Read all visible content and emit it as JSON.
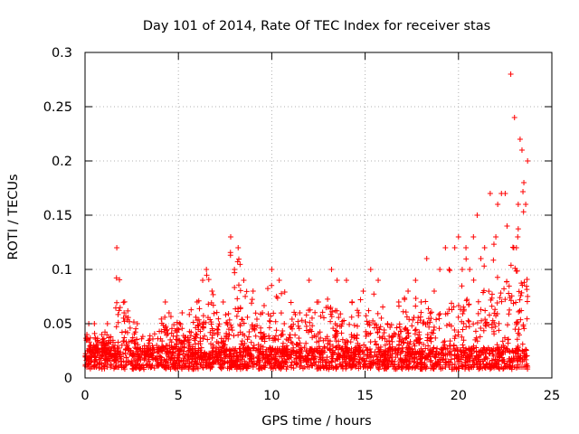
{
  "chart_data": {
    "type": "scatter",
    "title": "Day 101 of 2014, Rate Of TEC Index for receiver stas",
    "xlabel": "GPS time / hours",
    "ylabel": "ROTI / TECUs",
    "xlim": [
      0,
      25
    ],
    "ylim": [
      0,
      0.3
    ],
    "xticks": [
      0,
      5,
      10,
      15,
      20,
      25
    ],
    "xtick_labels": [
      "0",
      "5",
      "10",
      "15",
      "20",
      "25"
    ],
    "yticks": [
      0,
      0.05,
      0.1,
      0.15,
      0.2,
      0.25,
      0.3
    ],
    "ytick_labels": [
      "0",
      "0.05",
      "0.1",
      "0.15",
      "0.2",
      "0.25",
      "0.3"
    ],
    "grid": true,
    "marker": "+",
    "color": "#ff0000",
    "series": [
      {
        "name": "ROTI",
        "x": [
          0.1,
          0.2,
          0.3,
          0.5,
          0.6,
          0.9,
          1.2,
          1.6,
          1.7,
          2.8,
          3.4,
          4.3,
          4.5,
          5.2,
          6.0,
          6.3,
          6.5,
          6.8,
          7.4,
          7.8,
          8.0,
          8.2,
          8.5,
          9.0,
          9.5,
          10.0,
          10.4,
          11.5,
          12.0,
          12.5,
          13.2,
          13.5,
          14.0,
          14.3,
          14.9,
          15.3,
          15.7,
          16.2,
          16.8,
          17.3,
          17.7,
          18.0,
          18.3,
          18.7,
          19.0,
          19.3,
          19.5,
          19.8,
          20.0,
          20.2,
          20.4,
          20.6,
          20.8,
          21.0,
          21.2,
          21.4,
          21.7,
          22.0,
          22.1,
          22.3,
          22.5,
          22.6,
          22.8,
          23.0,
          23.1,
          23.2,
          23.3,
          23.4,
          23.5,
          23.6,
          23.7
        ],
        "y": [
          0.04,
          0.05,
          0.03,
          0.05,
          0.03,
          0.04,
          0.05,
          0.03,
          0.12,
          0.05,
          0.03,
          0.07,
          0.06,
          0.06,
          0.07,
          0.09,
          0.1,
          0.08,
          0.07,
          0.13,
          0.1,
          0.12,
          0.09,
          0.08,
          0.06,
          0.1,
          0.09,
          0.06,
          0.09,
          0.07,
          0.1,
          0.09,
          0.09,
          0.07,
          0.08,
          0.1,
          0.09,
          0.05,
          0.07,
          0.08,
          0.09,
          0.07,
          0.11,
          0.08,
          0.1,
          0.12,
          0.1,
          0.12,
          0.13,
          0.1,
          0.12,
          0.1,
          0.13,
          0.15,
          0.11,
          0.12,
          0.17,
          0.13,
          0.16,
          0.17,
          0.17,
          0.14,
          0.28,
          0.24,
          0.12,
          0.16,
          0.22,
          0.21,
          0.18,
          0.16,
          0.2
        ],
        "y_min": [
          0.01,
          0.01,
          0.01,
          0.01,
          0.01,
          0.01,
          0.01,
          0.01,
          0.01,
          0.01,
          0.01,
          0.01,
          0.01,
          0.01,
          0.01,
          0.01,
          0.01,
          0.01,
          0.01,
          0.01,
          0.01,
          0.01,
          0.01,
          0.01,
          0.01,
          0.01,
          0.01,
          0.01,
          0.01,
          0.01,
          0.01,
          0.01,
          0.01,
          0.01,
          0.01,
          0.01,
          0.01,
          0.01,
          0.01,
          0.01,
          0.01,
          0.01,
          0.01,
          0.01,
          0.01,
          0.01,
          0.01,
          0.01,
          0.01,
          0.01,
          0.01,
          0.01,
          0.01,
          0.01,
          0.01,
          0.01,
          0.01,
          0.01,
          0.01,
          0.01,
          0.01,
          0.01,
          0.01,
          0.01,
          0.01,
          0.01,
          0.01,
          0.01,
          0.01,
          0.01,
          0.01
        ]
      }
    ]
  }
}
